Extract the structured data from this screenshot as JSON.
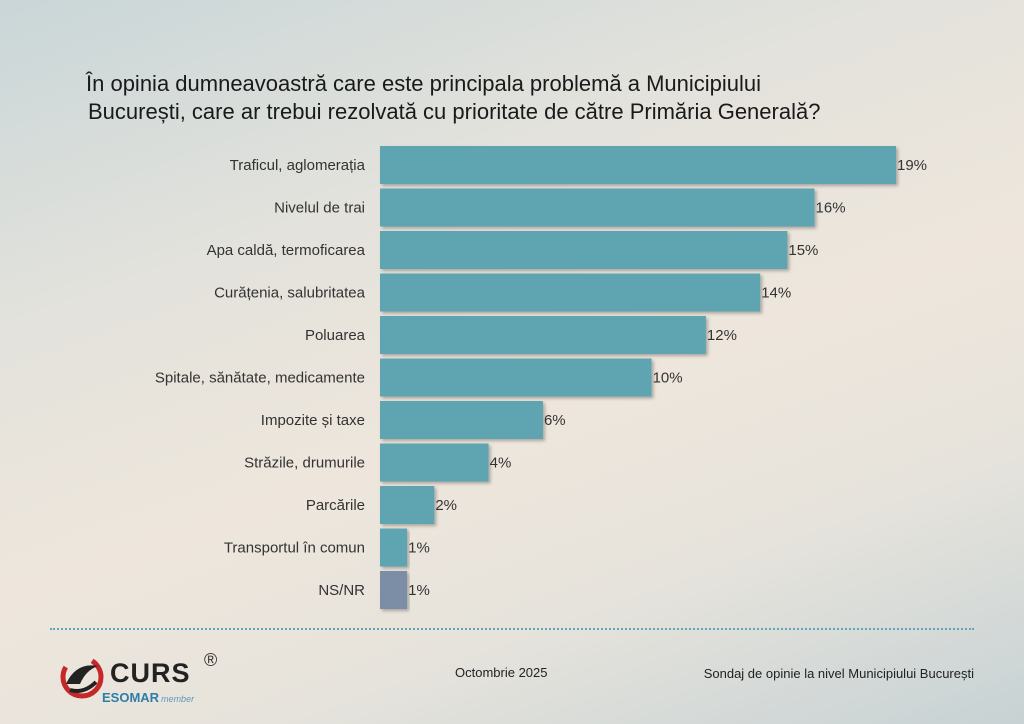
{
  "title_line1": "În opinia dumneavoastră care este principala problemă a Municipiului",
  "title_line2": "București, care ar trebui rezolvată cu prioritate de către Primăria Generală?",
  "colors": {
    "bar": "#5fa5b1",
    "bar_other": "#7c8ea6",
    "label": "#333333"
  },
  "chart_data": {
    "type": "bar",
    "orientation": "horizontal",
    "title": "În opinia dumneavoastră care este principala problemă a Municipiului București, care ar trebui rezolvată cu prioritate de către Primăria Generală?",
    "categories": [
      "Traficul, aglomerația",
      "Nivelul de trai",
      "Apa caldă, termoficarea",
      "Curățenia, salubritatea",
      "Poluarea",
      "Spitale, sănătate, medicamente",
      "Impozite și taxe",
      "Străzile, drumurile",
      "Parcările",
      "Transportul în comun",
      "NS/NR"
    ],
    "values": [
      19,
      16,
      15,
      14,
      12,
      10,
      6,
      4,
      2,
      1,
      1
    ],
    "value_labels": [
      "19%",
      "16%",
      "15%",
      "14%",
      "12%",
      "10%",
      "6%",
      "4%",
      "2%",
      "1%",
      "1%"
    ],
    "unit": "%",
    "xlim": [
      0,
      19
    ],
    "grid": false,
    "legend": "none"
  },
  "footer": {
    "logo_text": "CURS",
    "logo_reg": "®",
    "esomar": "ESOMAR",
    "esomar_member": "member",
    "date": "Octombrie 2025",
    "source": "Sondaj de opinie la nivel Municipiului București"
  }
}
